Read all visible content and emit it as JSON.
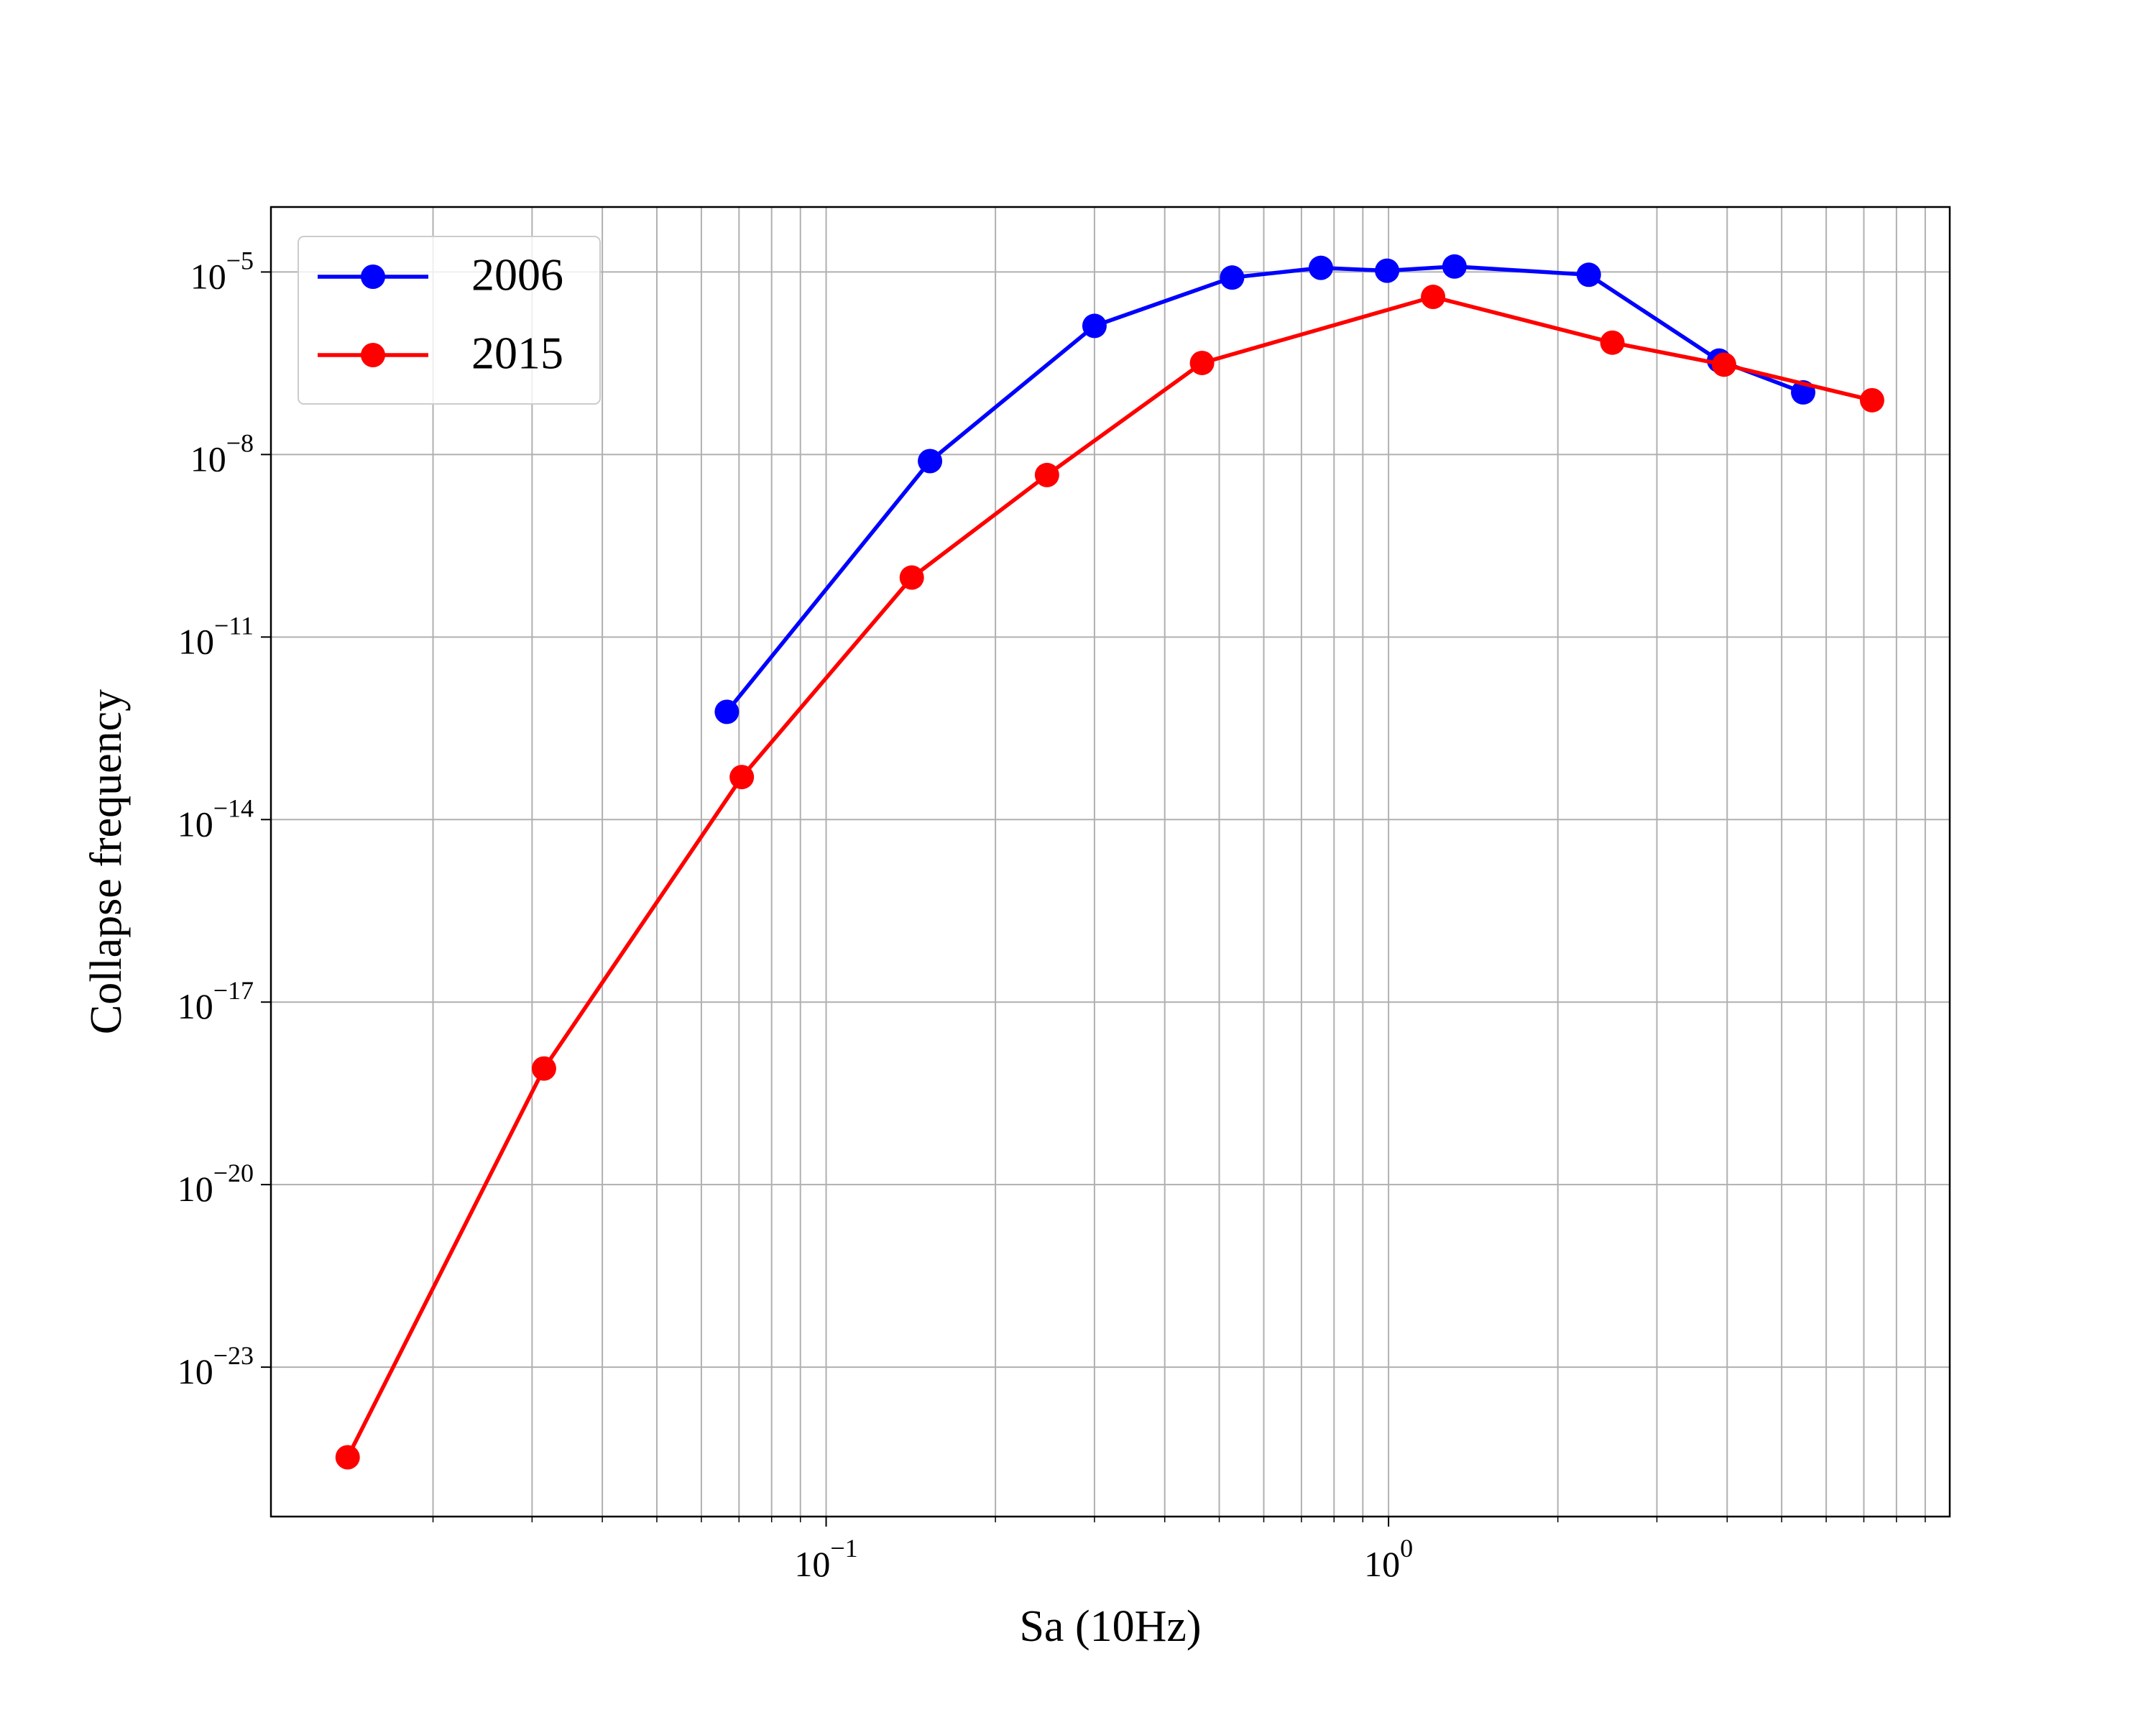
{
  "chart_data": {
    "type": "line",
    "x_label": "Sa (10Hz)",
    "y_label": "Collapse frequency",
    "xscale": "log",
    "yscale": "log",
    "xlim": [
      0.0103,
      9.95
    ],
    "ylim": [
      3.5e-26,
      0.000117
    ],
    "xticks": [
      {
        "value": 0.1,
        "label": "10−1"
      },
      {
        "value": 1,
        "label": "100"
      }
    ],
    "xminorticks": [
      0.02,
      0.03,
      0.04,
      0.05,
      0.06,
      0.07,
      0.08,
      0.09,
      0.2,
      0.3,
      0.4,
      0.5,
      0.6,
      0.7,
      0.8,
      0.9,
      2,
      3,
      4,
      5,
      6,
      7,
      8,
      9
    ],
    "yticks": [
      {
        "value": 1e-23,
        "label": "10−23"
      },
      {
        "value": 1e-20,
        "label": "10−20"
      },
      {
        "value": 1e-17,
        "label": "10−17"
      },
      {
        "value": 1e-14,
        "label": "10−14"
      },
      {
        "value": 1e-11,
        "label": "10−11"
      },
      {
        "value": 1e-08,
        "label": "10−8"
      },
      {
        "value": 1e-05,
        "label": "10−5"
      }
    ],
    "grid": true,
    "legend": "upper left",
    "series": [
      {
        "name": "2006",
        "color": "#0000ff",
        "x": [
          0.0666,
          0.153,
          0.3,
          0.527,
          0.758,
          0.994,
          1.31,
          2.27,
          3.87,
          5.46
        ],
        "values": [
          5.9e-13,
          7.8e-09,
          1.3e-06,
          8.1e-06,
          1.17e-05,
          1.05e-05,
          1.23e-05,
          9e-06,
          3.5e-07,
          1.05e-07
        ]
      },
      {
        "name": "2015",
        "color": "#ff0000",
        "x": [
          0.0141,
          0.0315,
          0.0708,
          0.142,
          0.247,
          0.466,
          1.2,
          2.5,
          3.95,
          7.24
        ],
        "values": [
          3.3e-25,
          8.1e-19,
          5e-14,
          9.5e-11,
          4.6e-09,
          3.2e-07,
          3.9e-06,
          6.9e-07,
          3e-07,
          7.8e-08
        ]
      }
    ]
  }
}
